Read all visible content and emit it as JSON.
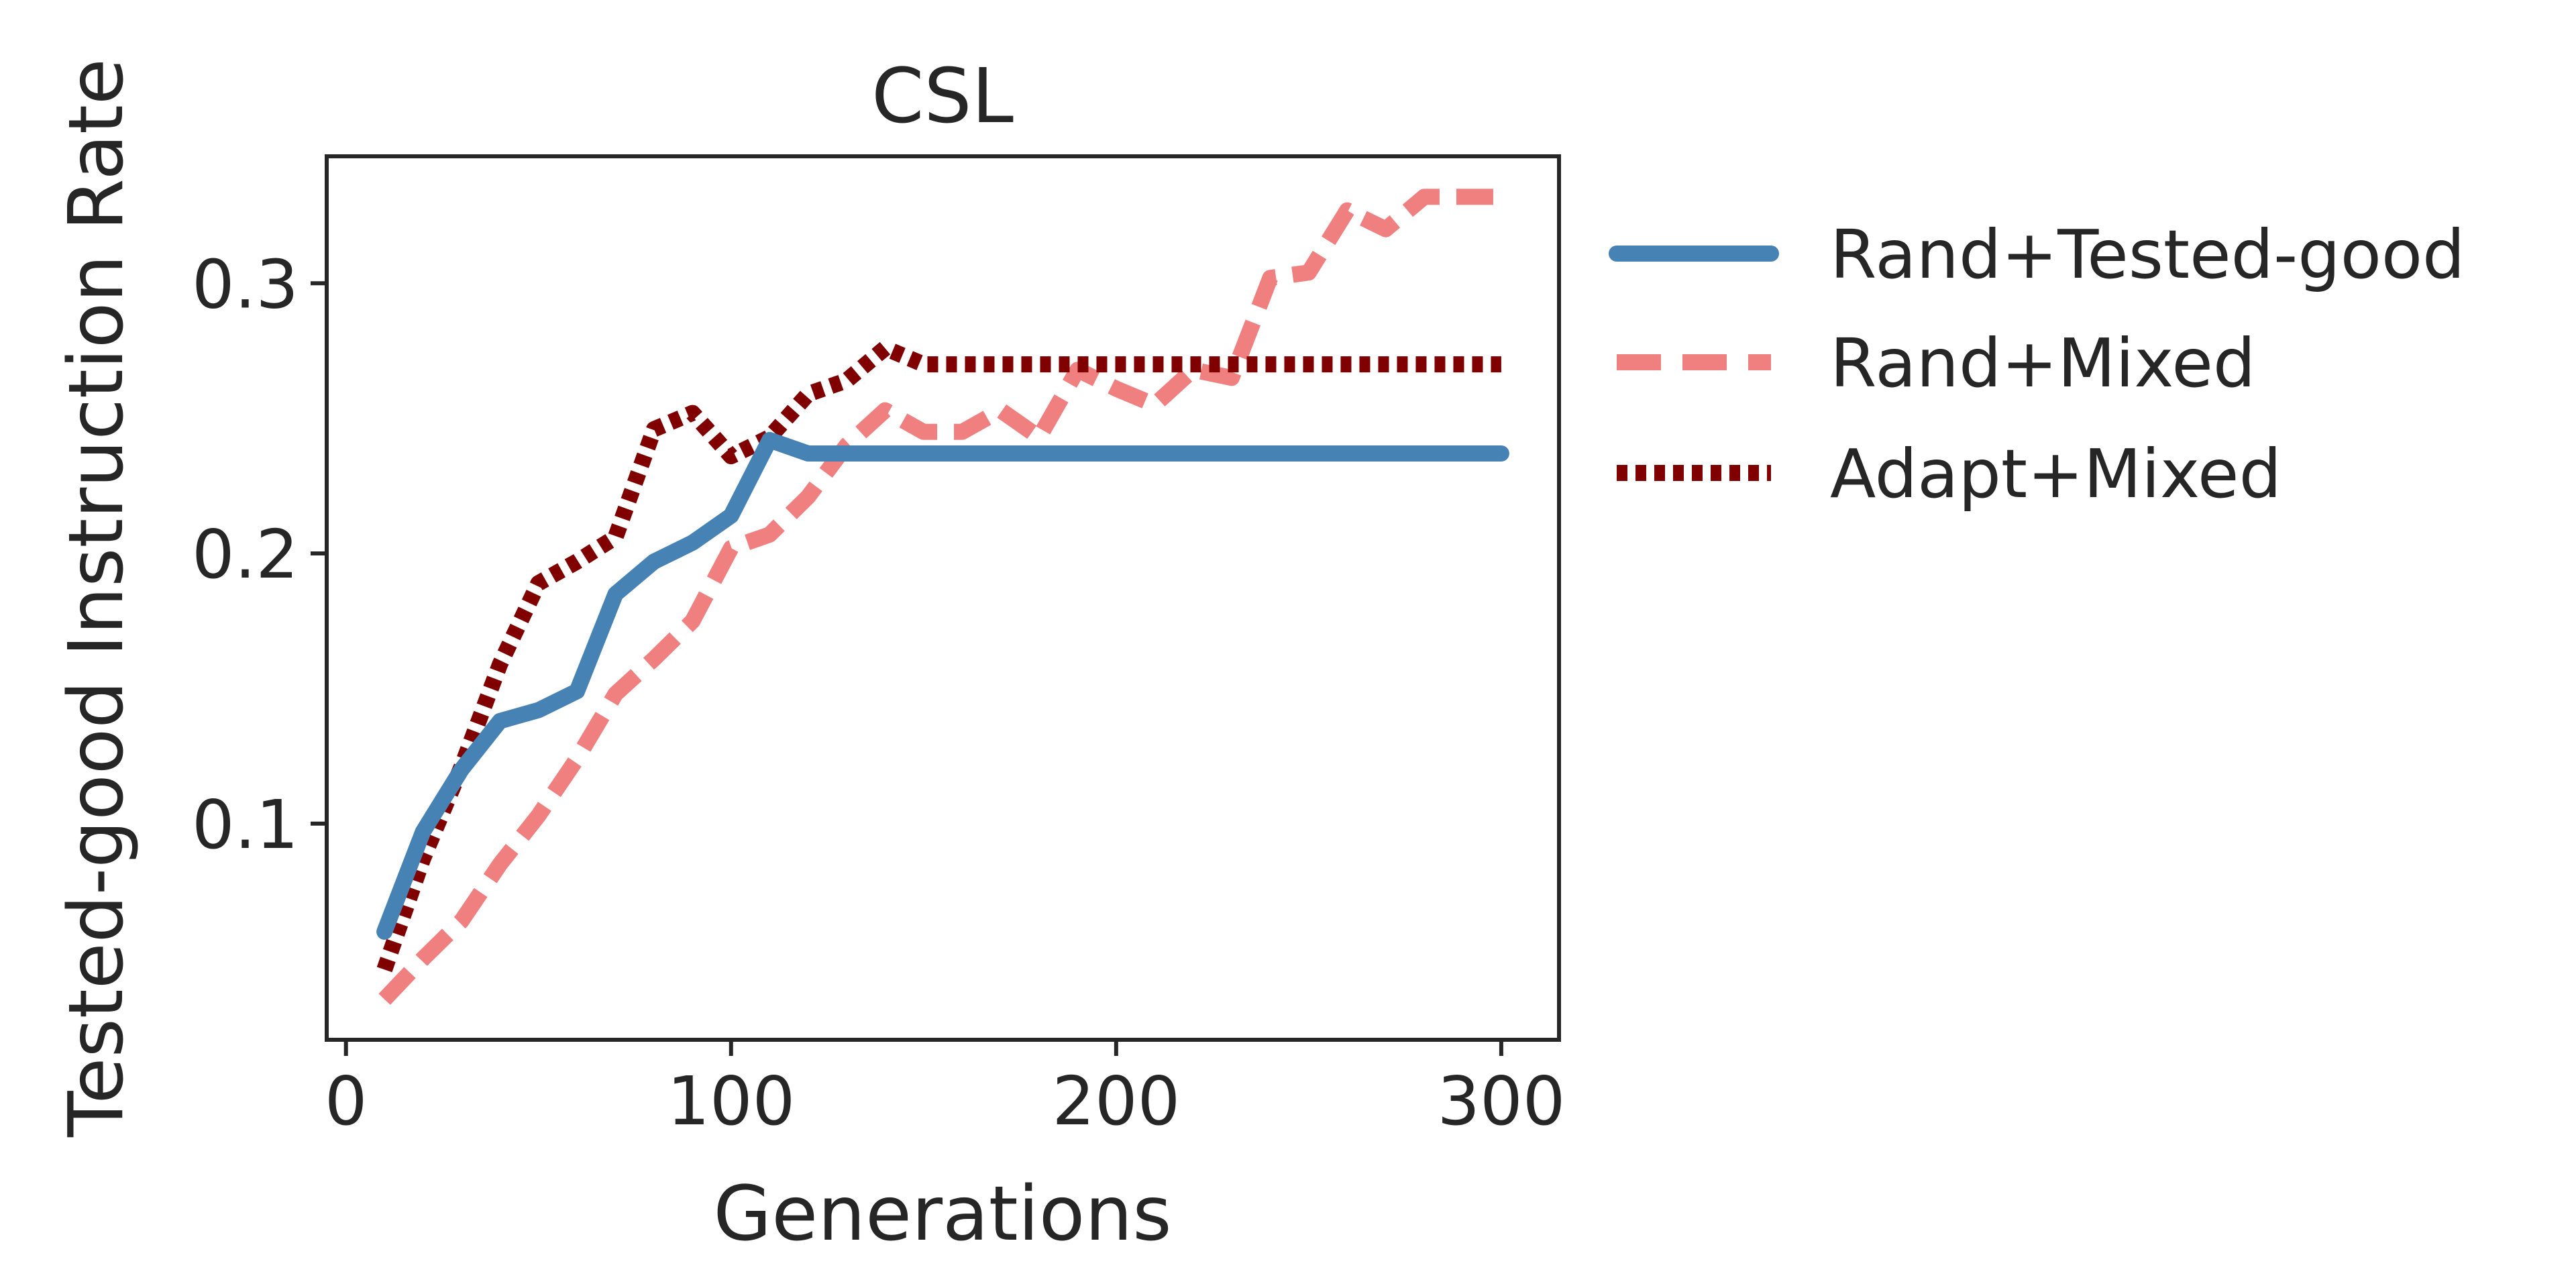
{
  "chart_data": {
    "type": "line",
    "title": "CSL",
    "xlabel": "Generations",
    "ylabel": "Tested-good Instruction Rate",
    "xlim": [
      -5,
      315
    ],
    "ylim": [
      0.02,
      0.347
    ],
    "xticks": [
      0,
      100,
      200,
      300
    ],
    "xtick_labels": [
      "0",
      "100",
      "200",
      "300"
    ],
    "yticks": [
      0.1,
      0.2,
      0.3
    ],
    "ytick_labels": [
      "0.1",
      "0.2",
      "0.3"
    ],
    "grid": false,
    "legend_placement": "outside right",
    "series": [
      {
        "name": "Rand+Tested-good",
        "color": "#4682B4",
        "style": "solid",
        "x": [
          10,
          20,
          30,
          40,
          50,
          60,
          70,
          80,
          90,
          100,
          110,
          120,
          130,
          140,
          150,
          160,
          170,
          180,
          190,
          200,
          210,
          220,
          230,
          240,
          250,
          260,
          270,
          280,
          290,
          300
        ],
        "y": [
          0.06,
          0.097,
          0.12,
          0.138,
          0.142,
          0.149,
          0.185,
          0.197,
          0.204,
          0.214,
          0.242,
          0.237,
          0.237,
          0.237,
          0.237,
          0.237,
          0.237,
          0.237,
          0.237,
          0.237,
          0.237,
          0.237,
          0.237,
          0.237,
          0.237,
          0.237,
          0.237,
          0.237,
          0.237,
          0.237
        ]
      },
      {
        "name": "Rand+Mixed",
        "color": "#F08080",
        "style": "dashed",
        "x": [
          10,
          20,
          30,
          40,
          50,
          60,
          70,
          80,
          90,
          100,
          110,
          120,
          130,
          140,
          150,
          160,
          170,
          180,
          190,
          200,
          210,
          220,
          230,
          240,
          250,
          260,
          270,
          280,
          290,
          300
        ],
        "y": [
          0.035,
          0.05,
          0.064,
          0.085,
          0.103,
          0.124,
          0.148,
          0.161,
          0.175,
          0.202,
          0.207,
          0.221,
          0.24,
          0.253,
          0.245,
          0.245,
          0.253,
          0.243,
          0.268,
          0.261,
          0.255,
          0.268,
          0.265,
          0.302,
          0.304,
          0.327,
          0.32,
          0.332,
          0.332,
          0.332
        ]
      },
      {
        "name": "Adapt+Mixed",
        "color": "#800000",
        "style": "dotted",
        "x": [
          10,
          20,
          30,
          40,
          50,
          60,
          70,
          80,
          90,
          100,
          110,
          120,
          130,
          140,
          150,
          160,
          170,
          180,
          190,
          200,
          210,
          220,
          230,
          240,
          250,
          260,
          270,
          280,
          290,
          300
        ],
        "y": [
          0.046,
          0.087,
          0.121,
          0.159,
          0.189,
          0.197,
          0.206,
          0.246,
          0.252,
          0.236,
          0.243,
          0.259,
          0.264,
          0.276,
          0.27,
          0.27,
          0.27,
          0.27,
          0.27,
          0.27,
          0.27,
          0.27,
          0.27,
          0.27,
          0.27,
          0.27,
          0.27,
          0.27,
          0.27,
          0.27
        ]
      }
    ]
  }
}
